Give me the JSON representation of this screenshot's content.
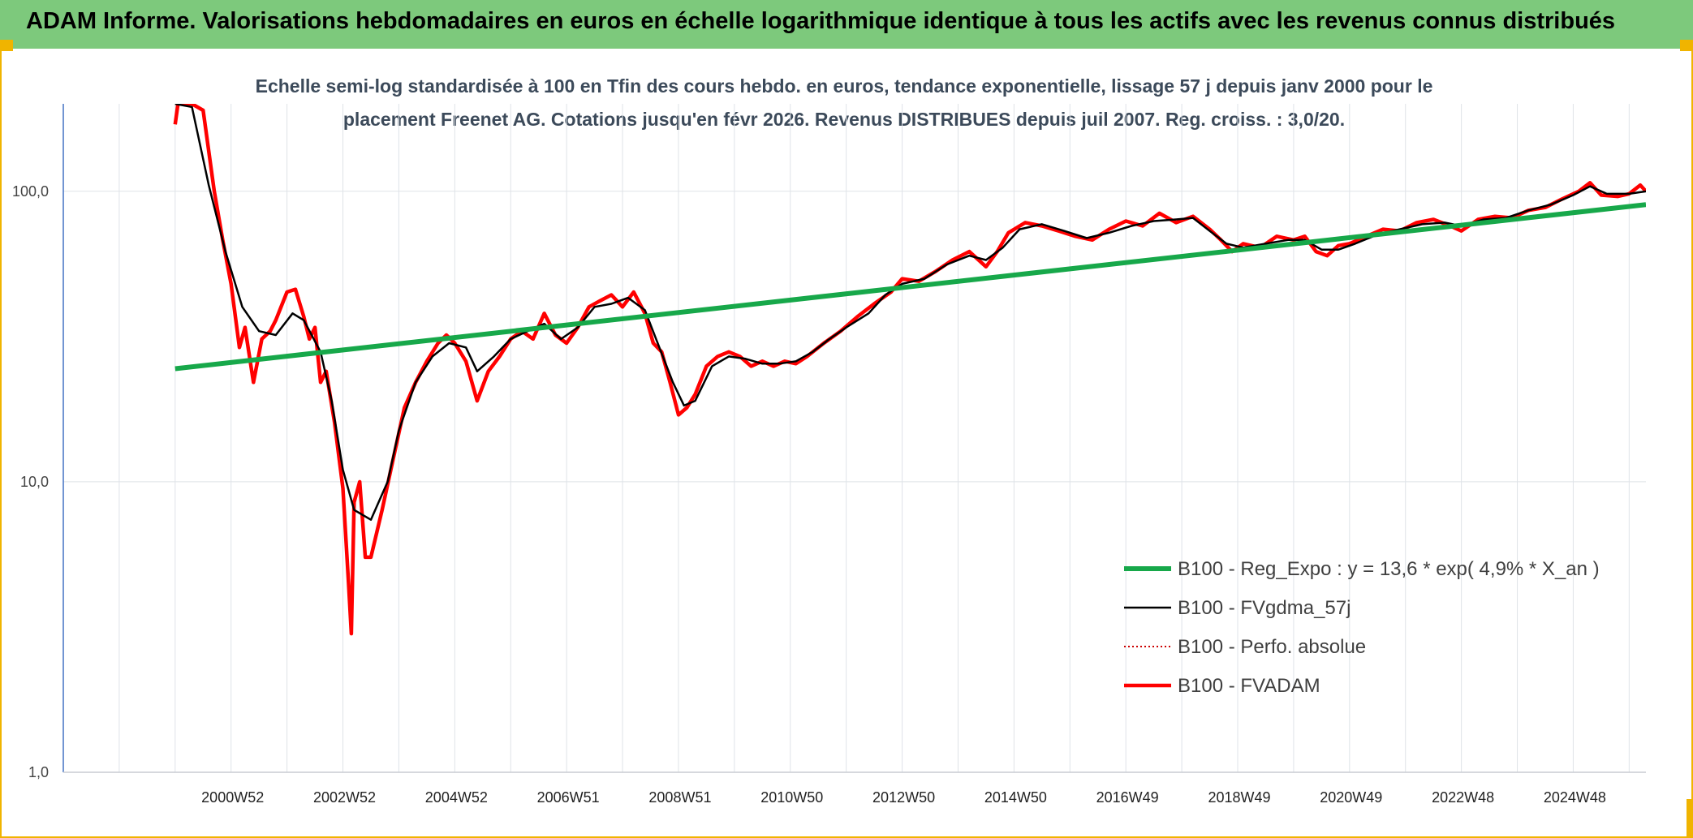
{
  "header": {
    "title": "ADAM Informe. Valorisations hebdomadaires en euros en échelle logarithmique identique à tous les actifs avec les revenus connus distribués"
  },
  "colors": {
    "header_bg": "#7dc97c",
    "frame": "#f0b400",
    "regression": "#17a84a",
    "smoothed": "#000000",
    "absolute": "#cc0000",
    "fvadam": "#ff0000",
    "grid": "#dfe3e8",
    "axis": "#4472c4"
  },
  "chart_data": {
    "type": "line",
    "title_lines": [
      "Echelle semi-log standardisée à 100 en Tfin des cours hebdo. en euros, tendance exponentielle, lissage 57 j depuis janv 2000 pour le",
      "placement Freenet AG. Cotations jusqu'en févr 2026. Revenus DISTRIBUES depuis juil 2007. Reg. croiss. : 3,0/20."
    ],
    "y_scale": "log",
    "ylim": [
      1,
      200
    ],
    "y_ticks": [
      {
        "value": 1,
        "label": "1,0"
      },
      {
        "value": 10,
        "label": "10,0"
      },
      {
        "value": 100,
        "label": "100,0"
      }
    ],
    "xlim": [
      1998.0,
      2026.3
    ],
    "x_tick_labels": [
      {
        "x": 2001.0,
        "label": "2000W52"
      },
      {
        "x": 2003.0,
        "label": "2002W52"
      },
      {
        "x": 2005.0,
        "label": "2004W52"
      },
      {
        "x": 2007.0,
        "label": "2006W51"
      },
      {
        "x": 2009.0,
        "label": "2008W51"
      },
      {
        "x": 2011.0,
        "label": "2010W50"
      },
      {
        "x": 2013.0,
        "label": "2012W50"
      },
      {
        "x": 2015.0,
        "label": "2014W50"
      },
      {
        "x": 2017.0,
        "label": "2016W49"
      },
      {
        "x": 2019.0,
        "label": "2018W49"
      },
      {
        "x": 2021.0,
        "label": "2020W49"
      },
      {
        "x": 2023.0,
        "label": "2022W48"
      },
      {
        "x": 2025.0,
        "label": "2024W48"
      }
    ],
    "grid": true,
    "legend_position": "bottom-right",
    "series": [
      {
        "name": "B100 - Reg_Expo : y = 13,6 * exp( 4,9% *  X_an )",
        "style": "thick-green",
        "points": [
          [
            2000.0,
            24.5
          ],
          [
            2026.3,
            90.0
          ]
        ]
      },
      {
        "name": "B100 - FVgdma_57j",
        "style": "thin-black",
        "points": [
          [
            2000.0,
            200
          ],
          [
            2000.3,
            195
          ],
          [
            2000.6,
            105
          ],
          [
            2000.9,
            62
          ],
          [
            2001.2,
            40
          ],
          [
            2001.5,
            33
          ],
          [
            2001.8,
            32
          ],
          [
            2002.1,
            38
          ],
          [
            2002.3,
            36
          ],
          [
            2002.6,
            28
          ],
          [
            2002.8,
            19
          ],
          [
            2003.0,
            11
          ],
          [
            2003.2,
            8
          ],
          [
            2003.5,
            7.4
          ],
          [
            2003.8,
            10
          ],
          [
            2004.0,
            15
          ],
          [
            2004.3,
            22
          ],
          [
            2004.6,
            27
          ],
          [
            2004.9,
            30
          ],
          [
            2005.2,
            29
          ],
          [
            2005.4,
            24
          ],
          [
            2005.7,
            27
          ],
          [
            2006.0,
            31
          ],
          [
            2006.3,
            33
          ],
          [
            2006.6,
            35
          ],
          [
            2006.9,
            31
          ],
          [
            2007.2,
            34
          ],
          [
            2007.5,
            40
          ],
          [
            2007.8,
            41
          ],
          [
            2008.1,
            43
          ],
          [
            2008.4,
            39
          ],
          [
            2008.6,
            31
          ],
          [
            2008.9,
            22
          ],
          [
            2009.1,
            18.3
          ],
          [
            2009.3,
            19
          ],
          [
            2009.6,
            25
          ],
          [
            2009.9,
            27
          ],
          [
            2010.2,
            26.5
          ],
          [
            2010.5,
            25.5
          ],
          [
            2010.8,
            25.5
          ],
          [
            2011.1,
            26
          ],
          [
            2011.4,
            28
          ],
          [
            2011.7,
            31
          ],
          [
            2012.0,
            34
          ],
          [
            2012.4,
            38
          ],
          [
            2012.7,
            44
          ],
          [
            2013.0,
            48
          ],
          [
            2013.4,
            50
          ],
          [
            2013.8,
            56
          ],
          [
            2014.2,
            60
          ],
          [
            2014.5,
            58
          ],
          [
            2014.8,
            64
          ],
          [
            2015.1,
            74
          ],
          [
            2015.5,
            77
          ],
          [
            2015.9,
            73
          ],
          [
            2016.3,
            69
          ],
          [
            2016.7,
            72
          ],
          [
            2017.1,
            76
          ],
          [
            2017.5,
            79
          ],
          [
            2017.9,
            80
          ],
          [
            2018.2,
            81
          ],
          [
            2018.5,
            73
          ],
          [
            2018.8,
            66
          ],
          [
            2019.1,
            64
          ],
          [
            2019.5,
            66
          ],
          [
            2019.9,
            68
          ],
          [
            2020.2,
            68
          ],
          [
            2020.5,
            63
          ],
          [
            2020.8,
            63
          ],
          [
            2021.1,
            66
          ],
          [
            2021.5,
            71
          ],
          [
            2021.9,
            74
          ],
          [
            2022.3,
            77
          ],
          [
            2022.7,
            78
          ],
          [
            2023.0,
            76
          ],
          [
            2023.4,
            80
          ],
          [
            2023.8,
            81
          ],
          [
            2024.2,
            86
          ],
          [
            2024.6,
            90
          ],
          [
            2025.0,
            97
          ],
          [
            2025.3,
            104
          ],
          [
            2025.6,
            98
          ],
          [
            2026.0,
            98
          ],
          [
            2026.3,
            100
          ]
        ]
      },
      {
        "name": "B100 - Perfo. absolue",
        "style": "dotted-red",
        "points": []
      },
      {
        "name": "B100 - FVADAM",
        "style": "thick-red",
        "points": [
          [
            2000.0,
            170
          ],
          [
            2000.05,
            200
          ],
          [
            2000.3,
            200
          ],
          [
            2000.5,
            190
          ],
          [
            2000.7,
            100
          ],
          [
            2000.85,
            68
          ],
          [
            2001.0,
            48
          ],
          [
            2001.15,
            29
          ],
          [
            2001.25,
            34
          ],
          [
            2001.4,
            22
          ],
          [
            2001.55,
            31
          ],
          [
            2001.7,
            33
          ],
          [
            2001.8,
            36
          ],
          [
            2002.0,
            45
          ],
          [
            2002.15,
            46
          ],
          [
            2002.3,
            37
          ],
          [
            2002.4,
            31
          ],
          [
            2002.5,
            34
          ],
          [
            2002.6,
            22
          ],
          [
            2002.7,
            24
          ],
          [
            2002.85,
            16
          ],
          [
            2003.0,
            9.5
          ],
          [
            2003.1,
            4.5
          ],
          [
            2003.15,
            3.0
          ],
          [
            2003.2,
            8.5
          ],
          [
            2003.3,
            10
          ],
          [
            2003.4,
            5.5
          ],
          [
            2003.5,
            5.5
          ],
          [
            2003.7,
            8
          ],
          [
            2003.9,
            12
          ],
          [
            2004.1,
            18
          ],
          [
            2004.3,
            22
          ],
          [
            2004.5,
            26
          ],
          [
            2004.7,
            30
          ],
          [
            2004.85,
            32
          ],
          [
            2005.0,
            30
          ],
          [
            2005.2,
            26
          ],
          [
            2005.4,
            19
          ],
          [
            2005.6,
            24
          ],
          [
            2005.8,
            27
          ],
          [
            2006.0,
            31
          ],
          [
            2006.2,
            33
          ],
          [
            2006.4,
            31
          ],
          [
            2006.6,
            38
          ],
          [
            2006.8,
            32
          ],
          [
            2007.0,
            30
          ],
          [
            2007.2,
            34
          ],
          [
            2007.4,
            40
          ],
          [
            2007.6,
            42
          ],
          [
            2007.8,
            44
          ],
          [
            2008.0,
            40
          ],
          [
            2008.2,
            45
          ],
          [
            2008.4,
            38
          ],
          [
            2008.55,
            30
          ],
          [
            2008.7,
            28
          ],
          [
            2008.85,
            22
          ],
          [
            2009.0,
            17
          ],
          [
            2009.15,
            18
          ],
          [
            2009.3,
            20
          ],
          [
            2009.5,
            25
          ],
          [
            2009.7,
            27
          ],
          [
            2009.9,
            28
          ],
          [
            2010.1,
            27
          ],
          [
            2010.3,
            25
          ],
          [
            2010.5,
            26
          ],
          [
            2010.7,
            25
          ],
          [
            2010.9,
            26
          ],
          [
            2011.1,
            25.5
          ],
          [
            2011.3,
            27
          ],
          [
            2011.6,
            30
          ],
          [
            2011.9,
            33
          ],
          [
            2012.2,
            37
          ],
          [
            2012.5,
            41
          ],
          [
            2012.8,
            45
          ],
          [
            2013.0,
            50
          ],
          [
            2013.3,
            49
          ],
          [
            2013.6,
            53
          ],
          [
            2013.9,
            58
          ],
          [
            2014.2,
            62
          ],
          [
            2014.5,
            55
          ],
          [
            2014.7,
            62
          ],
          [
            2014.9,
            72
          ],
          [
            2015.2,
            78
          ],
          [
            2015.5,
            76
          ],
          [
            2015.8,
            73
          ],
          [
            2016.1,
            70
          ],
          [
            2016.4,
            68
          ],
          [
            2016.7,
            74
          ],
          [
            2017.0,
            79
          ],
          [
            2017.3,
            76
          ],
          [
            2017.6,
            84
          ],
          [
            2017.9,
            78
          ],
          [
            2018.2,
            82
          ],
          [
            2018.5,
            74
          ],
          [
            2018.7,
            68
          ],
          [
            2018.9,
            62
          ],
          [
            2019.1,
            66
          ],
          [
            2019.4,
            64
          ],
          [
            2019.7,
            70
          ],
          [
            2020.0,
            68
          ],
          [
            2020.2,
            70
          ],
          [
            2020.4,
            62
          ],
          [
            2020.6,
            60
          ],
          [
            2020.8,
            65
          ],
          [
            2021.0,
            66
          ],
          [
            2021.3,
            70
          ],
          [
            2021.6,
            74
          ],
          [
            2021.9,
            73
          ],
          [
            2022.2,
            78
          ],
          [
            2022.5,
            80
          ],
          [
            2022.8,
            76
          ],
          [
            2023.0,
            73
          ],
          [
            2023.3,
            80
          ],
          [
            2023.6,
            82
          ],
          [
            2023.9,
            81
          ],
          [
            2024.2,
            86
          ],
          [
            2024.5,
            88
          ],
          [
            2024.8,
            94
          ],
          [
            2025.1,
            100
          ],
          [
            2025.3,
            107
          ],
          [
            2025.5,
            97
          ],
          [
            2025.8,
            96
          ],
          [
            2026.0,
            98
          ],
          [
            2026.2,
            105
          ],
          [
            2026.3,
            100
          ]
        ]
      }
    ]
  }
}
